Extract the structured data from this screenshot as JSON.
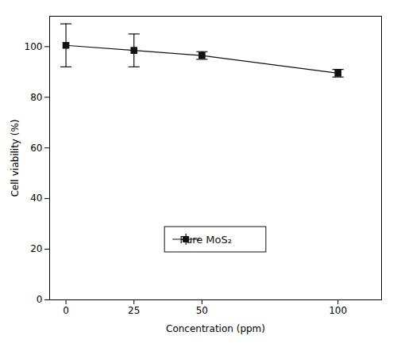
{
  "chart_data": {
    "type": "line",
    "x": [
      0,
      25,
      50,
      100
    ],
    "series": [
      {
        "name": "Pure MoS₂",
        "color": "#111111",
        "values": [
          100.5,
          98.5,
          96.5,
          89.5
        ],
        "yerr": [
          8.5,
          6.5,
          1.5,
          1.5
        ],
        "marker": "square",
        "line_style": "solid"
      }
    ],
    "xlabel": "Concentration (ppm)",
    "ylabel": "Cell viability (%)",
    "xlim": [
      -6,
      116
    ],
    "ylim": [
      0,
      112
    ],
    "xticks": [
      0,
      25,
      50,
      100
    ],
    "yticks": [
      0,
      20,
      40,
      60,
      80,
      100
    ],
    "legend": "lower center"
  }
}
